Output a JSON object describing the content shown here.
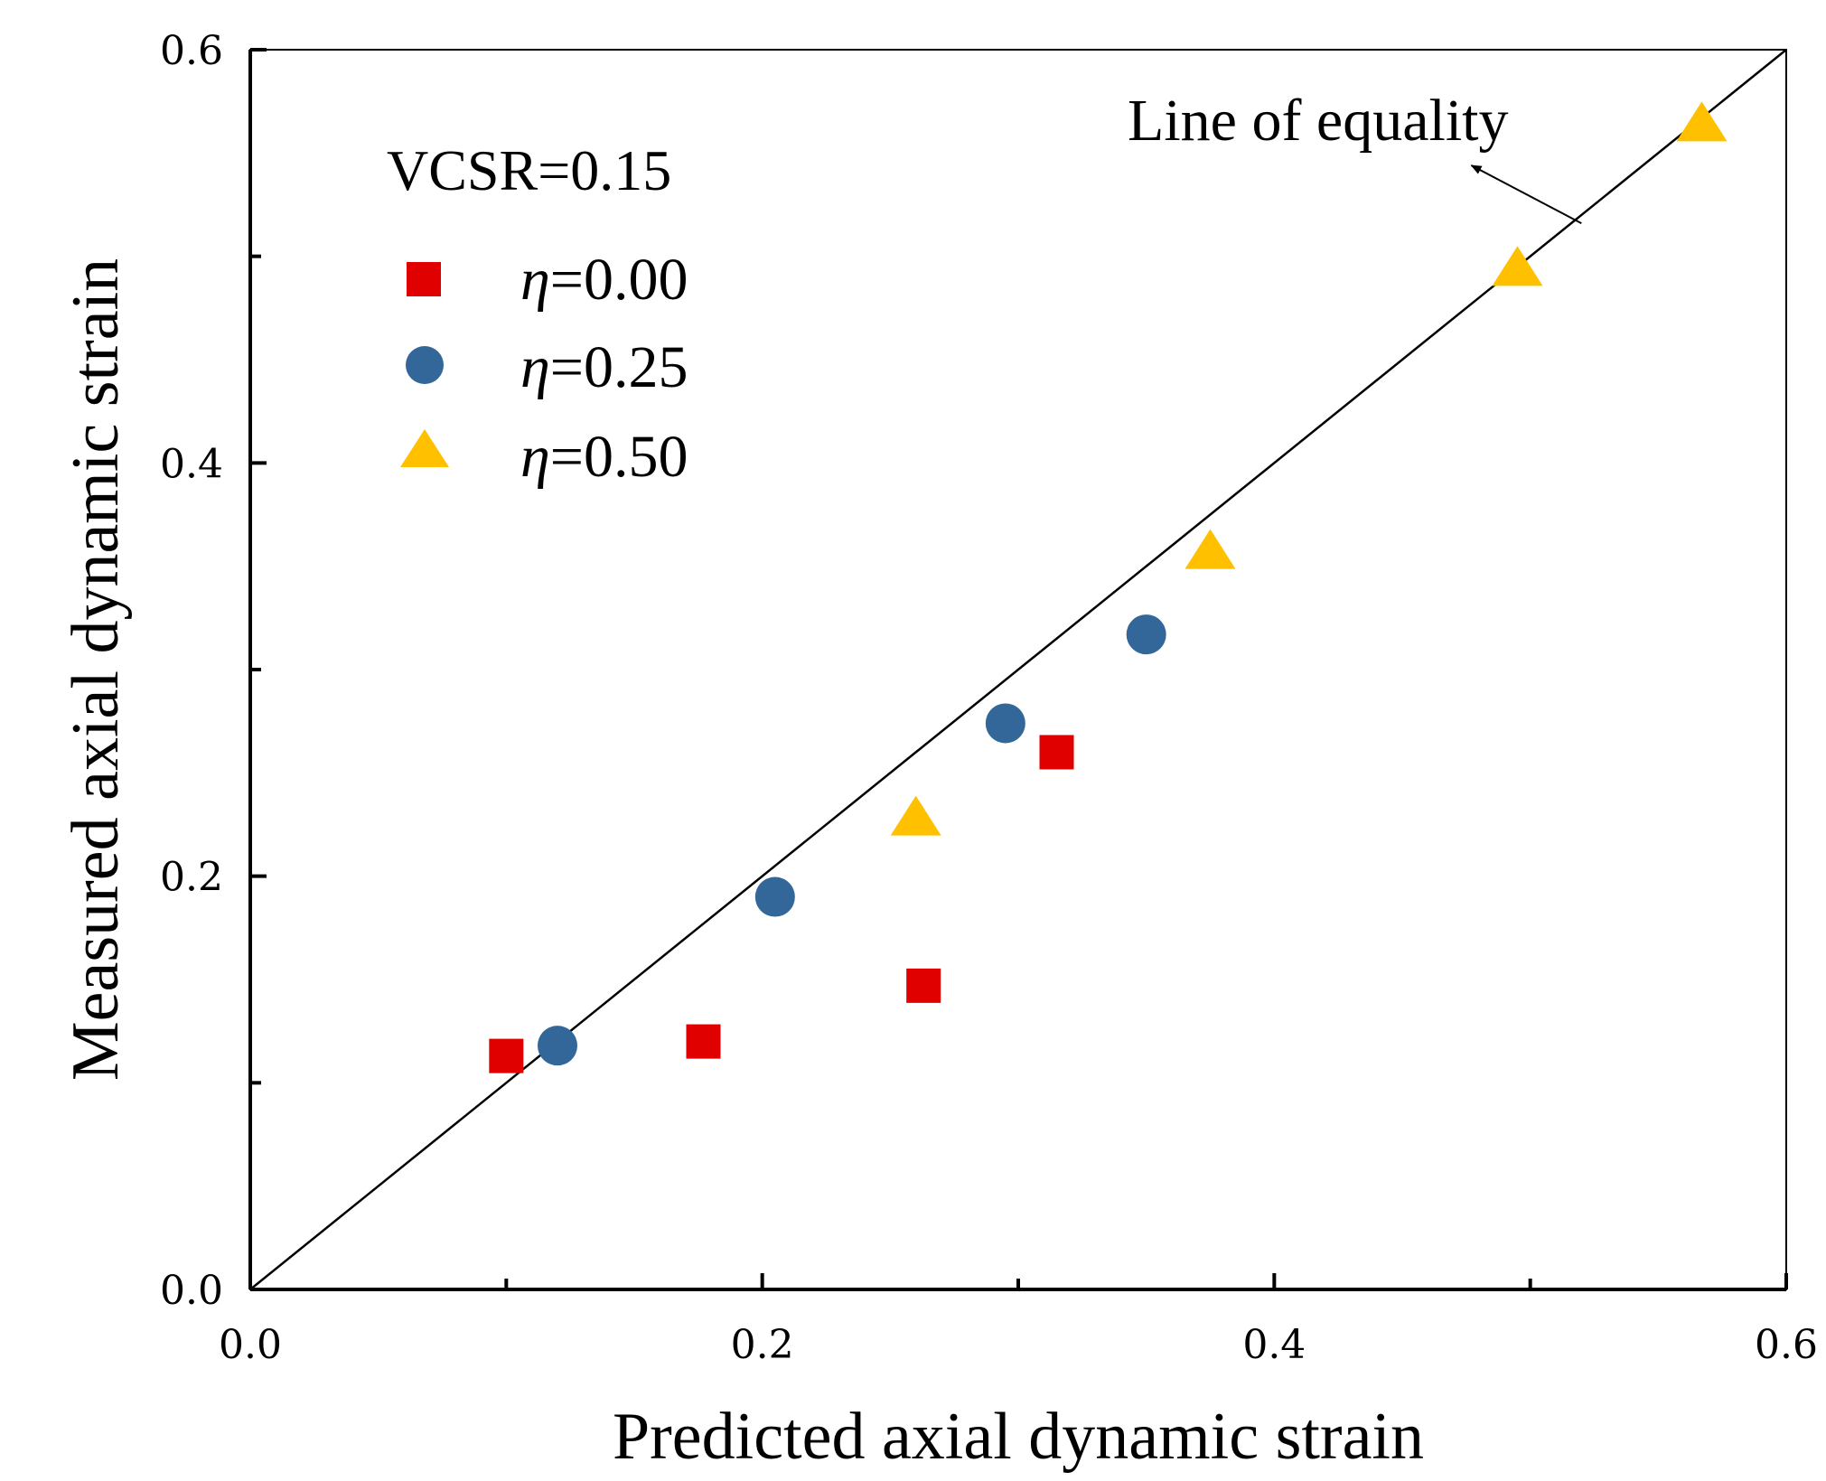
{
  "chart_data": {
    "type": "scatter",
    "title": "",
    "xlabel": "Predicted axial dynamic strain",
    "ylabel": "Measured axial dynamic strain",
    "xlim": [
      0.0,
      0.6
    ],
    "ylim": [
      0.0,
      0.6
    ],
    "x_ticks": [
      "0.0",
      "0.2",
      "0.4",
      "0.6"
    ],
    "y_ticks": [
      "0.0",
      "0.2",
      "0.4",
      "0.6"
    ],
    "x_tick_values": [
      0.0,
      0.2,
      0.4,
      0.6
    ],
    "y_tick_values": [
      0.0,
      0.2,
      0.4,
      0.6
    ],
    "minor_tick_values": [
      0.1,
      0.3,
      0.5
    ],
    "grid": false,
    "legend_position": "top-left",
    "legend_title": "VCSR=0.15",
    "series": [
      {
        "name": "η=0.00",
        "symbol": "η",
        "value_text": "=0.00",
        "marker": "square",
        "color": "#e00000",
        "points": [
          [
            0.1,
            0.113
          ],
          [
            0.177,
            0.12
          ],
          [
            0.263,
            0.147
          ],
          [
            0.315,
            0.26
          ]
        ]
      },
      {
        "name": "η=0.25",
        "symbol": "η",
        "value_text": "=0.25",
        "marker": "circle",
        "color": "#336699",
        "points": [
          [
            0.12,
            0.118
          ],
          [
            0.205,
            0.19
          ],
          [
            0.295,
            0.274
          ],
          [
            0.35,
            0.317
          ]
        ]
      },
      {
        "name": "η=0.50",
        "symbol": "η",
        "value_text": "=0.50",
        "marker": "triangle",
        "color": "#ffc000",
        "points": [
          [
            0.26,
            0.227
          ],
          [
            0.375,
            0.356
          ],
          [
            0.495,
            0.493
          ],
          [
            0.567,
            0.563
          ]
        ]
      }
    ],
    "reference_line": {
      "label": "Line of equality",
      "from": [
        0.0,
        0.0
      ],
      "to": [
        0.6,
        0.6
      ],
      "arrow_from": [
        0.52,
        0.516
      ],
      "arrow_to": [
        0.477,
        0.544
      ]
    }
  }
}
